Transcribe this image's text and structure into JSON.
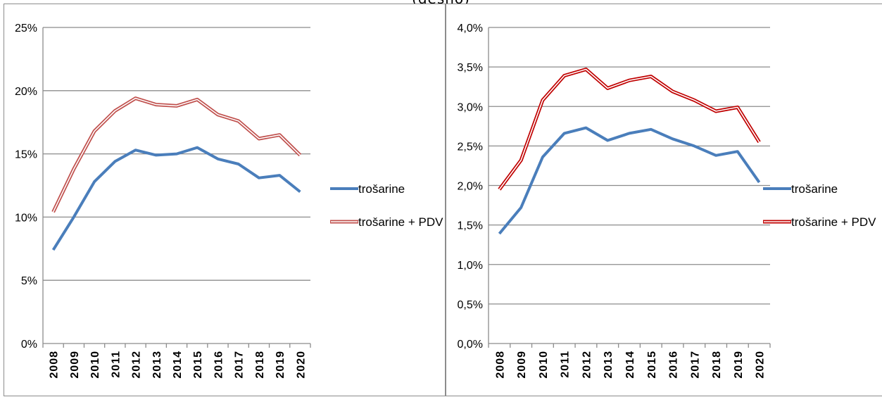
{
  "caption": "(desno)",
  "colors": {
    "blue": "#4a7ebb",
    "red_outline": "#c0504d",
    "red_dark": "#c00000",
    "grid": "#8c8c8c"
  },
  "chart_data": [
    {
      "type": "line",
      "title": "",
      "xlabel": "",
      "ylabel": "",
      "x": [
        "2008",
        "2009",
        "2010",
        "2011",
        "2012",
        "2013",
        "2014",
        "2015",
        "2016",
        "2017",
        "2018",
        "2019",
        "2020"
      ],
      "ylim": [
        0,
        25
      ],
      "yticks": [
        0,
        5,
        10,
        15,
        20,
        25
      ],
      "ytick_labels": [
        "0%",
        "5%",
        "10%",
        "15%",
        "20%",
        "25%"
      ],
      "grid": true,
      "legend_position": "right",
      "series": [
        {
          "name": "trošarine",
          "style": "solid",
          "color": "#4a7ebb",
          "values": [
            7.4,
            10.0,
            12.8,
            14.4,
            15.3,
            14.9,
            15.0,
            15.5,
            14.6,
            14.2,
            13.1,
            13.3,
            12.0
          ]
        },
        {
          "name": "trošarine + PDV",
          "style": "double",
          "color": "#c0504d",
          "values": [
            10.4,
            13.8,
            16.8,
            18.4,
            19.4,
            18.9,
            18.8,
            19.3,
            18.1,
            17.6,
            16.2,
            16.5,
            14.9
          ]
        }
      ]
    },
    {
      "type": "line",
      "title": "",
      "xlabel": "",
      "ylabel": "",
      "x": [
        "2008",
        "2009",
        "2010",
        "2011",
        "2012",
        "2013",
        "2014",
        "2015",
        "2016",
        "2017",
        "2018",
        "2019",
        "2020"
      ],
      "ylim": [
        0,
        4
      ],
      "yticks": [
        0,
        0.5,
        1,
        1.5,
        2,
        2.5,
        3,
        3.5,
        4
      ],
      "ytick_labels": [
        "0,0%",
        "0,5%",
        "1,0%",
        "1,5%",
        "2,0%",
        "2,5%",
        "3,0%",
        "3,5%",
        "4,0%"
      ],
      "grid": true,
      "legend_position": "right",
      "series": [
        {
          "name": "trošarine",
          "style": "solid",
          "color": "#4a7ebb",
          "values": [
            1.39,
            1.72,
            2.36,
            2.66,
            2.73,
            2.57,
            2.66,
            2.71,
            2.59,
            2.5,
            2.38,
            2.43,
            2.04
          ]
        },
        {
          "name": "trošarine + PDV",
          "style": "double",
          "color": "#c00000",
          "values": [
            1.95,
            2.32,
            3.08,
            3.39,
            3.47,
            3.23,
            3.33,
            3.38,
            3.19,
            3.08,
            2.94,
            2.99,
            2.55
          ]
        }
      ]
    }
  ]
}
